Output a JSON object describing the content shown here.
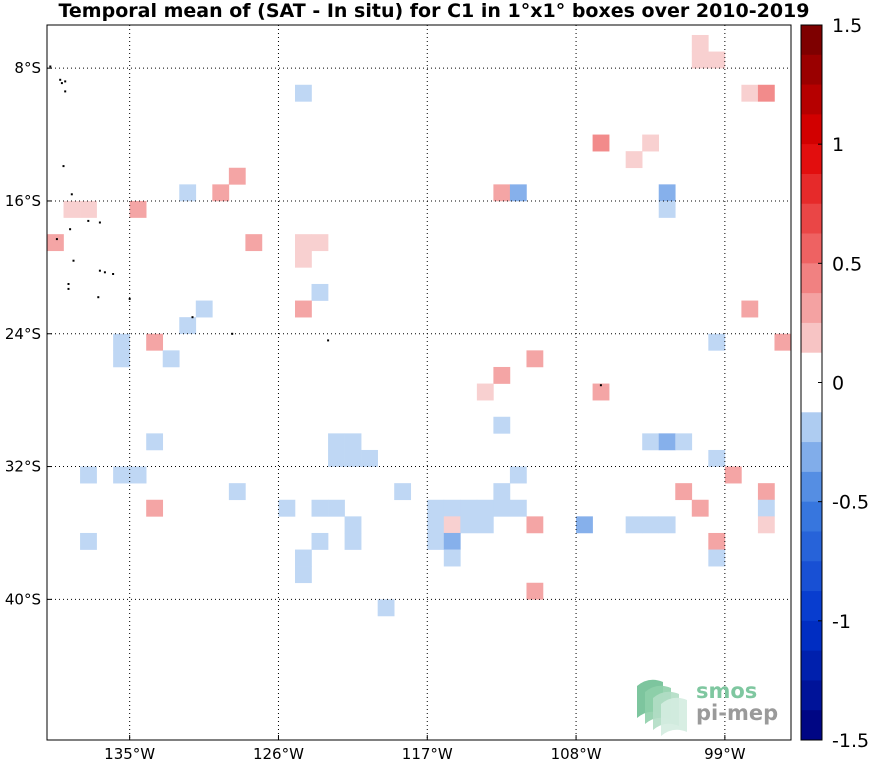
{
  "chart_data": {
    "type": "heatmap",
    "title": "Temporal mean of (SAT - In situ) for C1 in 1°x1° boxes over 2010-2019",
    "xlim": [
      -140,
      -95
    ],
    "ylim": [
      -45,
      -5
    ],
    "x_ticks": [
      {
        "value": -135,
        "label": "135°W"
      },
      {
        "value": -126,
        "label": "126°W"
      },
      {
        "value": -117,
        "label": "117°W"
      },
      {
        "value": -108,
        "label": "108°W"
      },
      {
        "value": -99,
        "label": "99°W"
      }
    ],
    "y_ticks": [
      {
        "value": -8,
        "label": "8°S"
      },
      {
        "value": -16,
        "label": "16°S"
      },
      {
        "value": -24,
        "label": "24°S"
      },
      {
        "value": -32,
        "label": "32°S"
      },
      {
        "value": -40,
        "label": "40°S"
      }
    ],
    "grid": true,
    "colorbar": {
      "vmin": -1.5,
      "vmax": 1.5,
      "ticks": [
        {
          "value": 1.5,
          "label": "1.5"
        },
        {
          "value": 1,
          "label": "1"
        },
        {
          "value": 0.5,
          "label": "0.5"
        },
        {
          "value": 0,
          "label": "0"
        },
        {
          "value": -0.5,
          "label": "-0.5"
        },
        {
          "value": -1,
          "label": "-1"
        },
        {
          "value": -1.5,
          "label": "-1.5"
        }
      ]
    },
    "cells": [
      {
        "lon": -100.5,
        "lat": -6.5,
        "value": 0.15
      },
      {
        "lon": -100.5,
        "lat": -7.5,
        "value": 0.15
      },
      {
        "lon": -99.5,
        "lat": -7.5,
        "value": 0.15
      },
      {
        "lon": -124.5,
        "lat": -9.5,
        "value": -0.15
      },
      {
        "lon": -97.5,
        "lat": -9.5,
        "value": 0.15
      },
      {
        "lon": -96.5,
        "lat": -9.5,
        "value": 0.4
      },
      {
        "lon": -106.5,
        "lat": -12.5,
        "value": 0.4
      },
      {
        "lon": -103.5,
        "lat": -12.5,
        "value": 0.15
      },
      {
        "lon": -104.5,
        "lat": -13.5,
        "value": 0.15
      },
      {
        "lon": -128.5,
        "lat": -14.5,
        "value": 0.3
      },
      {
        "lon": -131.5,
        "lat": -15.5,
        "value": -0.15
      },
      {
        "lon": -129.5,
        "lat": -15.5,
        "value": 0.3
      },
      {
        "lon": -112.5,
        "lat": -15.5,
        "value": 0.3
      },
      {
        "lon": -111.5,
        "lat": -15.5,
        "value": -0.3
      },
      {
        "lon": -102.5,
        "lat": -15.5,
        "value": -0.3
      },
      {
        "lon": -138.5,
        "lat": -16.5,
        "value": 0.15
      },
      {
        "lon": -137.5,
        "lat": -16.5,
        "value": 0.15
      },
      {
        "lon": -134.5,
        "lat": -16.5,
        "value": 0.3
      },
      {
        "lon": -102.5,
        "lat": -16.5,
        "value": -0.15
      },
      {
        "lon": -139.5,
        "lat": -18.5,
        "value": 0.3
      },
      {
        "lon": -127.5,
        "lat": -18.5,
        "value": 0.3
      },
      {
        "lon": -124.5,
        "lat": -18.5,
        "value": 0.15
      },
      {
        "lon": -123.5,
        "lat": -18.5,
        "value": 0.15
      },
      {
        "lon": -124.5,
        "lat": -19.5,
        "value": 0.15
      },
      {
        "lon": -140.5,
        "lat": -20.5,
        "value": -0.15
      },
      {
        "lon": -140.5,
        "lat": -21.5,
        "value": -0.15
      },
      {
        "lon": -123.5,
        "lat": -21.5,
        "value": -0.15
      },
      {
        "lon": -130.5,
        "lat": -22.5,
        "value": -0.15
      },
      {
        "lon": -124.5,
        "lat": -22.5,
        "value": 0.3
      },
      {
        "lon": -97.5,
        "lat": -22.5,
        "value": 0.3
      },
      {
        "lon": -131.5,
        "lat": -23.5,
        "value": -0.15
      },
      {
        "lon": -135.5,
        "lat": -24.5,
        "value": -0.15
      },
      {
        "lon": -133.5,
        "lat": -24.5,
        "value": 0.3
      },
      {
        "lon": -99.5,
        "lat": -24.5,
        "value": -0.15
      },
      {
        "lon": -95.5,
        "lat": -24.5,
        "value": 0.3
      },
      {
        "lon": -135.5,
        "lat": -25.5,
        "value": -0.15
      },
      {
        "lon": -132.5,
        "lat": -25.5,
        "value": -0.15
      },
      {
        "lon": -110.5,
        "lat": -25.5,
        "value": 0.3
      },
      {
        "lon": -112.5,
        "lat": -26.5,
        "value": 0.3
      },
      {
        "lon": -113.5,
        "lat": -27.5,
        "value": 0.15
      },
      {
        "lon": -106.5,
        "lat": -27.5,
        "value": 0.3
      },
      {
        "lon": -112.5,
        "lat": -29.5,
        "value": -0.15
      },
      {
        "lon": -133.5,
        "lat": -30.5,
        "value": -0.15
      },
      {
        "lon": -122.5,
        "lat": -30.5,
        "value": -0.15
      },
      {
        "lon": -121.5,
        "lat": -30.5,
        "value": -0.15
      },
      {
        "lon": -103.5,
        "lat": -30.5,
        "value": -0.15
      },
      {
        "lon": -102.5,
        "lat": -30.5,
        "value": -0.3
      },
      {
        "lon": -101.5,
        "lat": -30.5,
        "value": -0.15
      },
      {
        "lon": -122.5,
        "lat": -31.5,
        "value": -0.15
      },
      {
        "lon": -121.5,
        "lat": -31.5,
        "value": -0.15
      },
      {
        "lon": -120.5,
        "lat": -31.5,
        "value": -0.15
      },
      {
        "lon": -99.5,
        "lat": -31.5,
        "value": -0.15
      },
      {
        "lon": -137.5,
        "lat": -32.5,
        "value": -0.15
      },
      {
        "lon": -135.5,
        "lat": -32.5,
        "value": -0.15
      },
      {
        "lon": -134.5,
        "lat": -32.5,
        "value": -0.15
      },
      {
        "lon": -111.5,
        "lat": -32.5,
        "value": -0.15
      },
      {
        "lon": -98.5,
        "lat": -32.5,
        "value": 0.3
      },
      {
        "lon": -128.5,
        "lat": -33.5,
        "value": -0.15
      },
      {
        "lon": -118.5,
        "lat": -33.5,
        "value": -0.15
      },
      {
        "lon": -112.5,
        "lat": -33.5,
        "value": -0.15
      },
      {
        "lon": -101.5,
        "lat": -33.5,
        "value": 0.3
      },
      {
        "lon": -96.5,
        "lat": -33.5,
        "value": 0.3
      },
      {
        "lon": -133.5,
        "lat": -34.5,
        "value": 0.3
      },
      {
        "lon": -125.5,
        "lat": -34.5,
        "value": -0.15
      },
      {
        "lon": -123.5,
        "lat": -34.5,
        "value": -0.15
      },
      {
        "lon": -122.5,
        "lat": -34.5,
        "value": -0.15
      },
      {
        "lon": -116.5,
        "lat": -34.5,
        "value": -0.15
      },
      {
        "lon": -115.5,
        "lat": -34.5,
        "value": -0.15
      },
      {
        "lon": -114.5,
        "lat": -34.5,
        "value": -0.15
      },
      {
        "lon": -113.5,
        "lat": -34.5,
        "value": -0.15
      },
      {
        "lon": -112.5,
        "lat": -34.5,
        "value": -0.15
      },
      {
        "lon": -111.5,
        "lat": -34.5,
        "value": -0.15
      },
      {
        "lon": -100.5,
        "lat": -34.5,
        "value": 0.3
      },
      {
        "lon": -96.5,
        "lat": -34.5,
        "value": -0.15
      },
      {
        "lon": -121.5,
        "lat": -35.5,
        "value": -0.15
      },
      {
        "lon": -116.5,
        "lat": -35.5,
        "value": -0.15
      },
      {
        "lon": -115.5,
        "lat": -35.5,
        "value": 0.15
      },
      {
        "lon": -114.5,
        "lat": -35.5,
        "value": -0.15
      },
      {
        "lon": -113.5,
        "lat": -35.5,
        "value": -0.15
      },
      {
        "lon": -110.5,
        "lat": -35.5,
        "value": 0.3
      },
      {
        "lon": -107.5,
        "lat": -35.5,
        "value": -0.3
      },
      {
        "lon": -104.5,
        "lat": -35.5,
        "value": -0.15
      },
      {
        "lon": -103.5,
        "lat": -35.5,
        "value": -0.15
      },
      {
        "lon": -102.5,
        "lat": -35.5,
        "value": -0.15
      },
      {
        "lon": -96.5,
        "lat": -35.5,
        "value": 0.15
      },
      {
        "lon": -137.5,
        "lat": -36.5,
        "value": -0.15
      },
      {
        "lon": -123.5,
        "lat": -36.5,
        "value": -0.15
      },
      {
        "lon": -121.5,
        "lat": -36.5,
        "value": -0.15
      },
      {
        "lon": -116.5,
        "lat": -36.5,
        "value": -0.15
      },
      {
        "lon": -115.5,
        "lat": -36.5,
        "value": -0.3
      },
      {
        "lon": -99.5,
        "lat": -36.5,
        "value": 0.3
      },
      {
        "lon": -124.5,
        "lat": -37.5,
        "value": -0.15
      },
      {
        "lon": -115.5,
        "lat": -37.5,
        "value": -0.15
      },
      {
        "lon": -99.5,
        "lat": -37.5,
        "value": -0.15
      },
      {
        "lon": -124.5,
        "lat": -38.5,
        "value": -0.15
      },
      {
        "lon": -110.5,
        "lat": -39.5,
        "value": 0.3
      },
      {
        "lon": -119.5,
        "lat": -40.5,
        "value": -0.15
      }
    ],
    "islands": [
      [
        -139.8,
        -7.9
      ],
      [
        -139.2,
        -8.7
      ],
      [
        -139.1,
        -8.9
      ],
      [
        -138.9,
        -8.8
      ],
      [
        -138.9,
        -9.4
      ],
      [
        -139.0,
        -13.9
      ],
      [
        -138.5,
        -15.6
      ],
      [
        -137.5,
        -17.2
      ],
      [
        -136.8,
        -17.3
      ],
      [
        -138.6,
        -17.7
      ],
      [
        -139.4,
        -18.3
      ],
      [
        -138.4,
        -19.6
      ],
      [
        -136.8,
        -20.2
      ],
      [
        -136.5,
        -20.3
      ],
      [
        -136.0,
        -20.4
      ],
      [
        -138.7,
        -21.0
      ],
      [
        -138.7,
        -21.3
      ],
      [
        -136.9,
        -21.8
      ],
      [
        -135.0,
        -21.9
      ],
      [
        -131.2,
        -23.0
      ],
      [
        -128.8,
        -24.0
      ],
      [
        -123.0,
        -24.4
      ],
      [
        -106.5,
        -27.1
      ]
    ],
    "logo": {
      "line1": "smos",
      "line2": "pi-mep"
    }
  }
}
